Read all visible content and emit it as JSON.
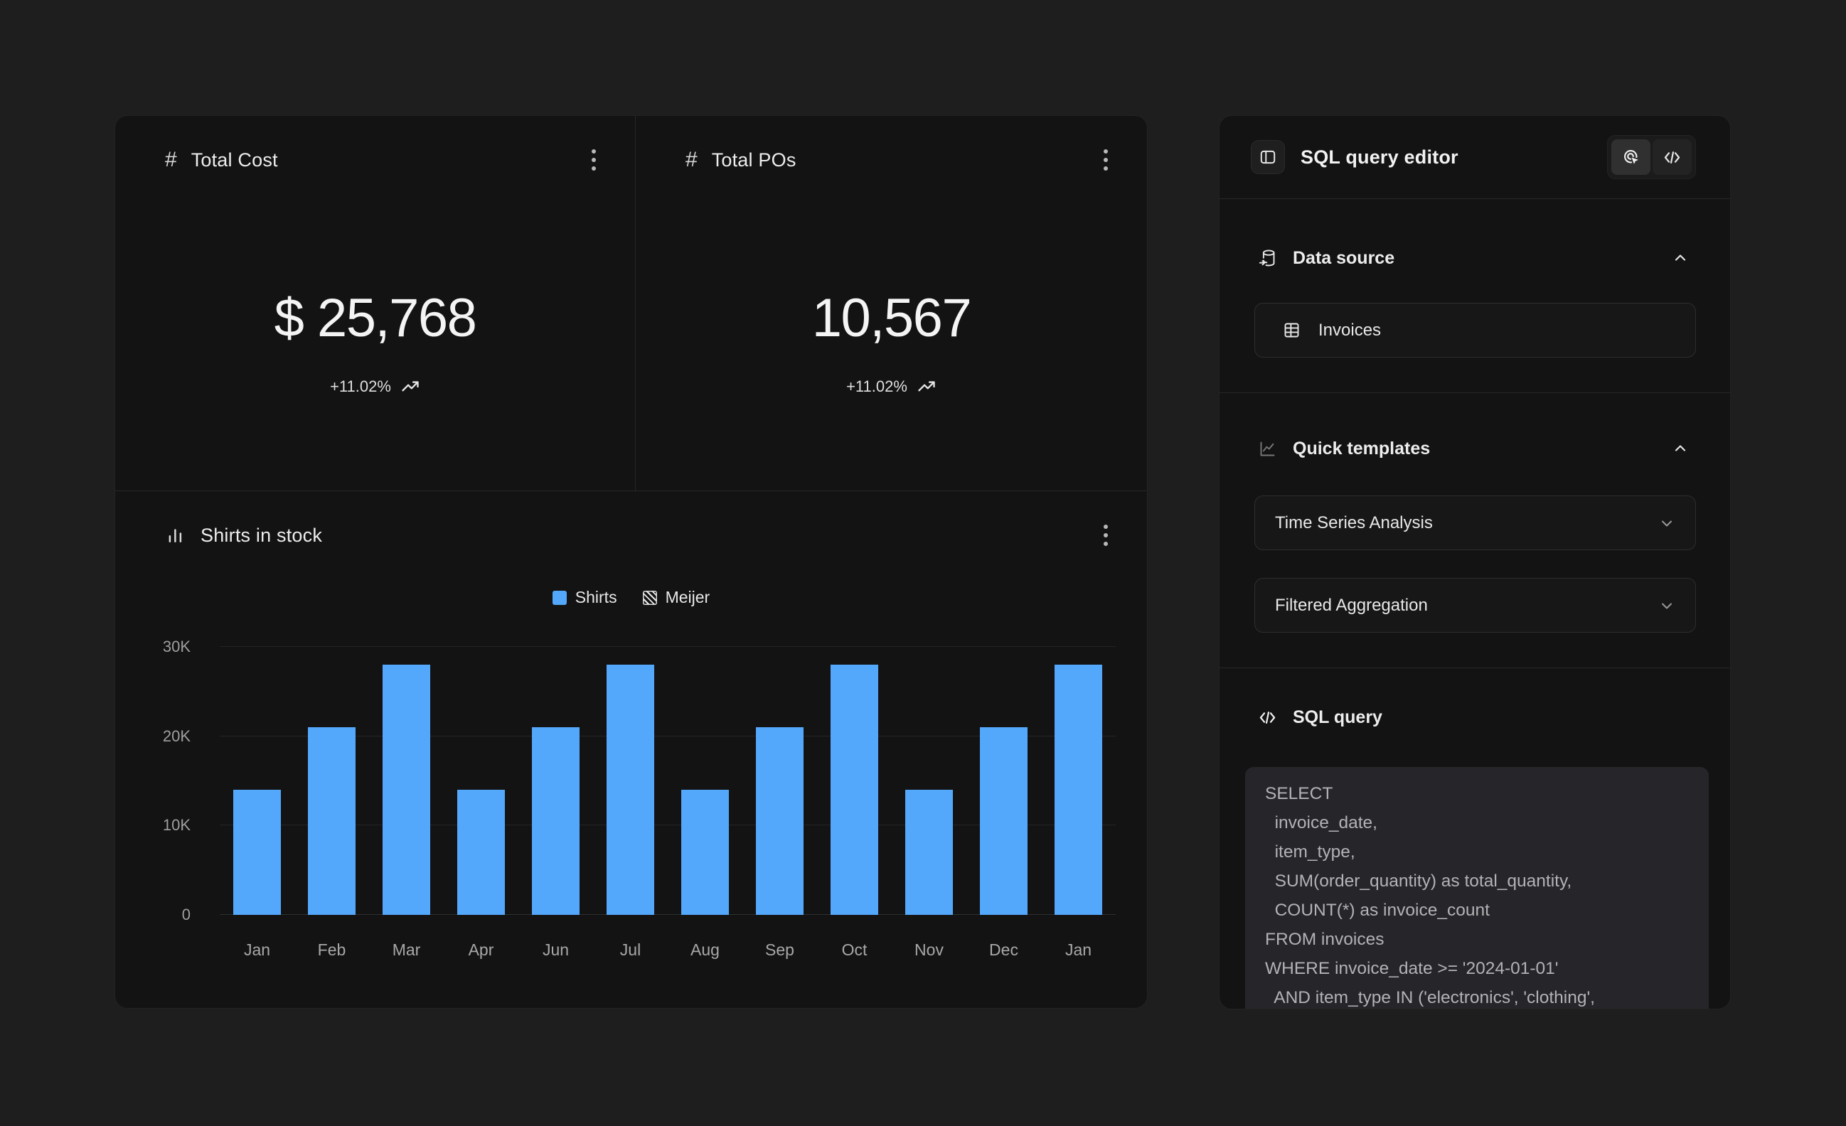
{
  "colors": {
    "page_bg": "#1e1e1e",
    "card_bg": "#131313",
    "divider": "#272727",
    "accent_blue": "#54a8fc",
    "code_bg": "#26262a",
    "text_primary": "#f2f2f2",
    "text_secondary": "#a3a3a3"
  },
  "stat_cards": [
    {
      "title": "Total Cost",
      "value": "$ 25,768",
      "trend": "+11.02%",
      "trend_direction": "up"
    },
    {
      "title": "Total POs",
      "value": "10,567",
      "trend": "+11.02%",
      "trend_direction": "up"
    }
  ],
  "chart_card": {
    "title": "Shirts in stock"
  },
  "chart_data": {
    "type": "bar",
    "title": "Shirts in stock",
    "categories": [
      "Jan",
      "Feb",
      "Mar",
      "Apr",
      "Jun",
      "Jul",
      "Aug",
      "Sep",
      "Oct",
      "Nov",
      "Dec",
      "Jan"
    ],
    "series": [
      {
        "name": "Shirts",
        "swatch": "solid-blue",
        "color": "#54a8fc",
        "values": [
          14000,
          21000,
          28000,
          14000,
          21000,
          28000,
          14000,
          21000,
          28000,
          14000,
          21000,
          28000
        ]
      },
      {
        "name": "Meijer",
        "swatch": "hatched",
        "values": []
      }
    ],
    "xlabel": "",
    "ylabel": "",
    "ylim": [
      0,
      30000
    ],
    "yticks": [
      {
        "value": 0,
        "label": "0"
      },
      {
        "value": 10000,
        "label": "10K"
      },
      {
        "value": 20000,
        "label": "20K"
      },
      {
        "value": 30000,
        "label": "30K"
      }
    ],
    "grid": true,
    "legend_position": "top-center"
  },
  "sql_editor": {
    "title": "SQL query editor",
    "data_source": {
      "label": "Data source",
      "table_name": "Invoices"
    },
    "quick_templates": {
      "label": "Quick templates",
      "options": [
        "Time Series Analysis",
        "Filtered Aggregation"
      ]
    },
    "sql_query": {
      "label": "SQL query",
      "lines": [
        "SELECT",
        "  invoice_date,",
        "  item_type,",
        "  SUM(order_quantity) as total_quantity,",
        "  COUNT(*) as invoice_count",
        "FROM invoices",
        "WHERE invoice_date >= '2024-01-01'",
        "  AND item_type IN ('electronics', 'clothing',"
      ]
    }
  }
}
